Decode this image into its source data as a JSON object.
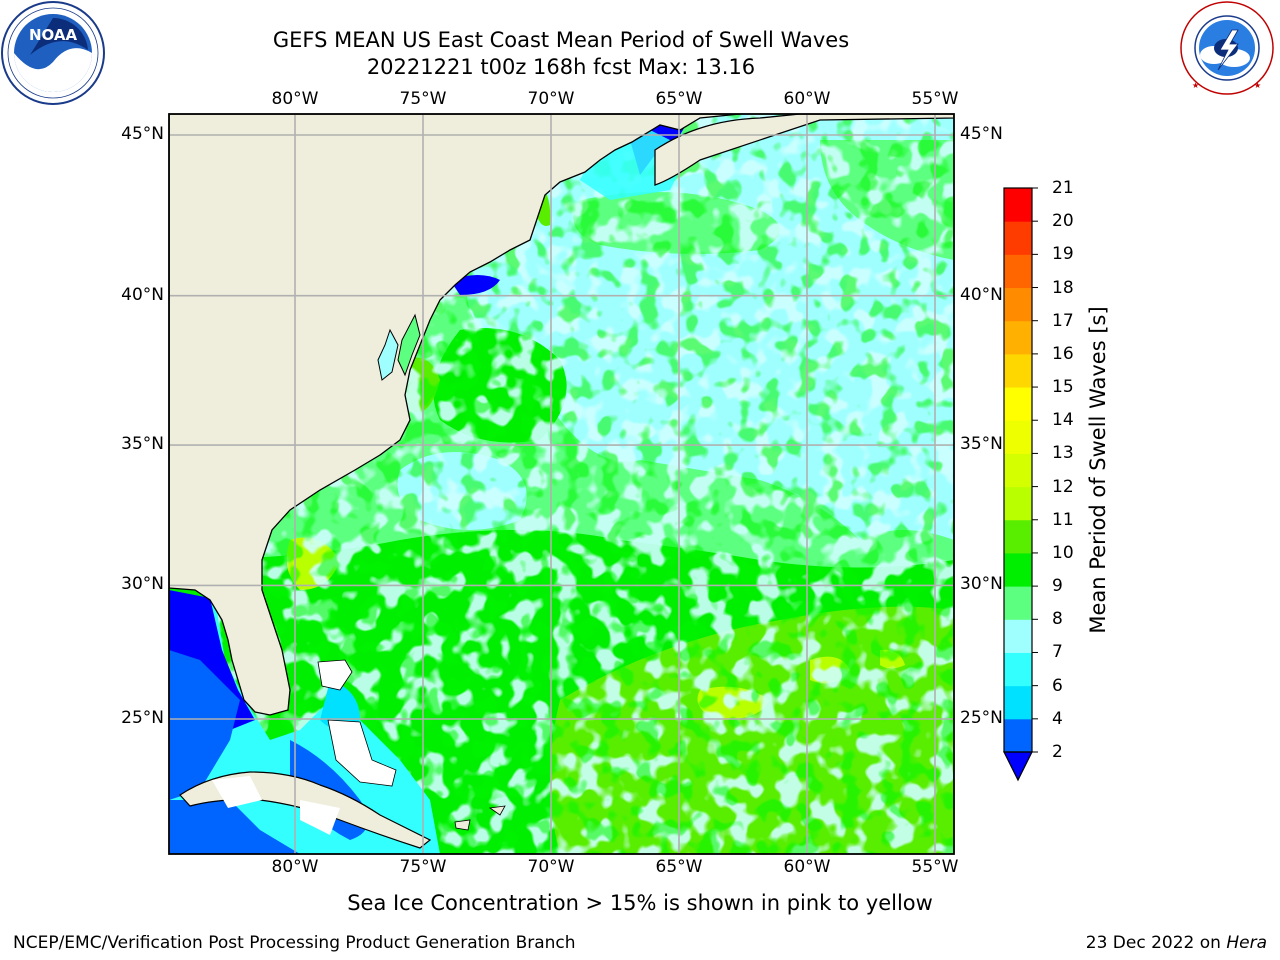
{
  "title": {
    "line1": "GEFS MEAN US East Coast Mean Period of Swell Waves",
    "line2": "20221221 t00z 168h fcst   Max: 13.16"
  },
  "logos": {
    "noaa": {
      "text": "NOAA",
      "ring_text": "NATIONAL OCEANIC AND ATMOSPHERIC ADMINISTRATION · U.S. DEPARTMENT OF COMMERCE"
    },
    "nws": {
      "ring_text": "NATIONAL WEATHER SERVICE"
    }
  },
  "map": {
    "lon_range": [
      -85,
      -54
    ],
    "lat_range": [
      20.5,
      46
    ],
    "lon_ticks": [
      "80°W",
      "75°W",
      "70°W",
      "65°W",
      "60°W",
      "55°W"
    ],
    "lat_ticks": [
      "45°N",
      "40°N",
      "35°N",
      "30°N",
      "25°N"
    ],
    "land_color": "#efeedd",
    "grid_color": "#b0b0b0"
  },
  "colorbar": {
    "label": "Mean Period of Swell Waves [s]",
    "ticks": [
      "2",
      "4",
      "6",
      "7",
      "8",
      "9",
      "10",
      "11",
      "12",
      "13",
      "14",
      "15",
      "16",
      "17",
      "18",
      "19",
      "20",
      "21"
    ],
    "colors": [
      "#0064ff",
      "#00e1ff",
      "#33ffff",
      "#9fffff",
      "#5dff80",
      "#00ee00",
      "#59ee00",
      "#b9ff00",
      "#d4ff00",
      "#eeff00",
      "#ffff00",
      "#ffd700",
      "#ffb000",
      "#ff8c00",
      "#ff6600",
      "#ff3c00",
      "#ff0000"
    ],
    "under_color": "#0000ff"
  },
  "ice_note": "Sea Ice Concentration > 15% is shown in pink to yellow",
  "footer": {
    "left": "NCEP/EMC/Verification Post Processing Product Generation Branch",
    "right_prefix": "23 Dec 2022 on ",
    "right_host": "Hera"
  }
}
